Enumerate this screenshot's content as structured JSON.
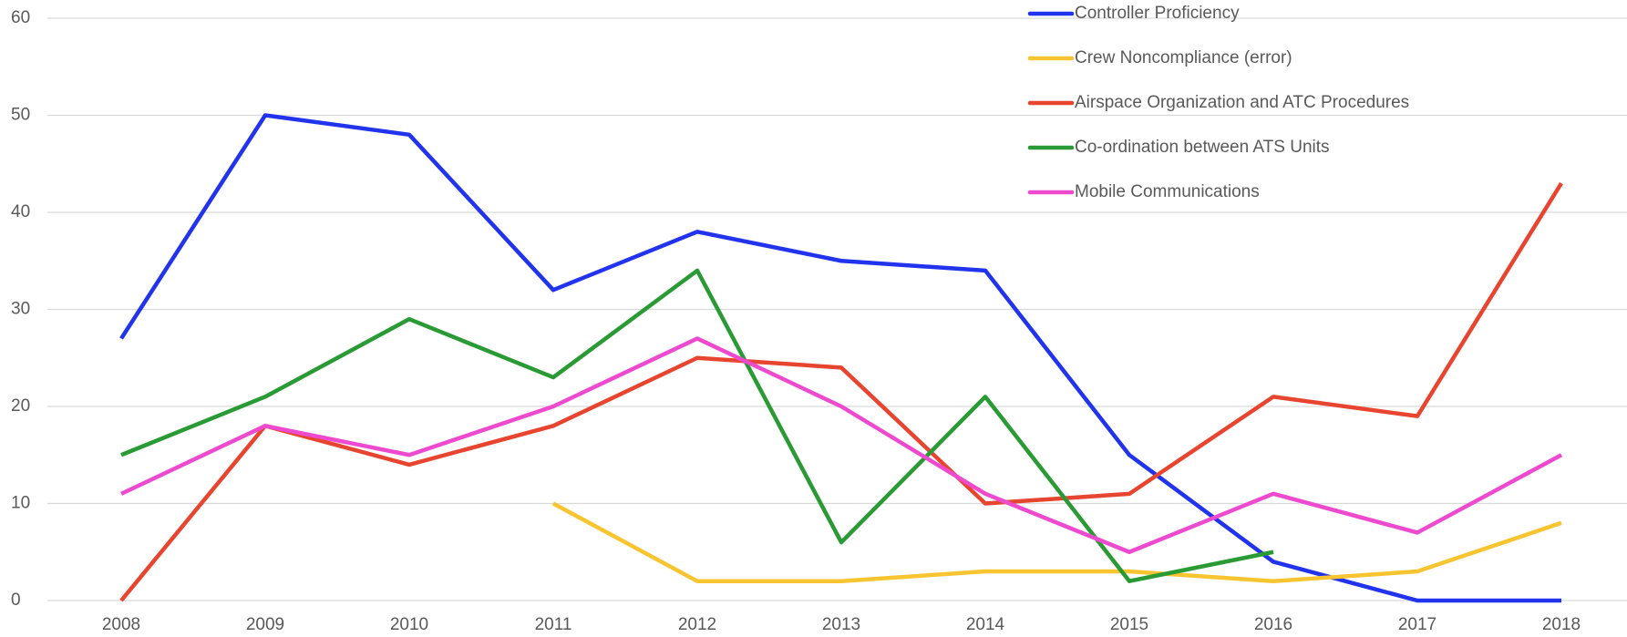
{
  "chart_data": {
    "type": "line",
    "categories": [
      "2008",
      "2009",
      "2010",
      "2011",
      "2012",
      "2013",
      "2014",
      "2015",
      "2016",
      "2017",
      "2018"
    ],
    "series": [
      {
        "name": "Controller Proficiency",
        "color": "#2233ee",
        "values": [
          27,
          50,
          48,
          32,
          38,
          35,
          34,
          15,
          4,
          0,
          0
        ]
      },
      {
        "name": "Crew Noncompliance (error)",
        "color": "#f8c430",
        "values": [
          null,
          null,
          null,
          10,
          2,
          2,
          3,
          3,
          2,
          3,
          8
        ]
      },
      {
        "name": "Airspace Organization and ATC Procedures",
        "color": "#e84530",
        "values": [
          0,
          18,
          14,
          18,
          25,
          24,
          10,
          11,
          21,
          19,
          43
        ]
      },
      {
        "name": "Co-ordination between ATS Units",
        "color": "#2a9a35",
        "values": [
          15,
          21,
          29,
          23,
          34,
          6,
          21,
          2,
          5,
          null,
          null
        ]
      },
      {
        "name": "Mobile Communications",
        "color": "#ee4ad0",
        "values": [
          11,
          18,
          15,
          20,
          27,
          20,
          11,
          5,
          11,
          7,
          15
        ]
      }
    ],
    "ylim": [
      0,
      60
    ],
    "yticks": [
      0,
      10,
      20,
      30,
      40,
      50,
      60
    ],
    "grid": true,
    "legend": "top-right"
  }
}
